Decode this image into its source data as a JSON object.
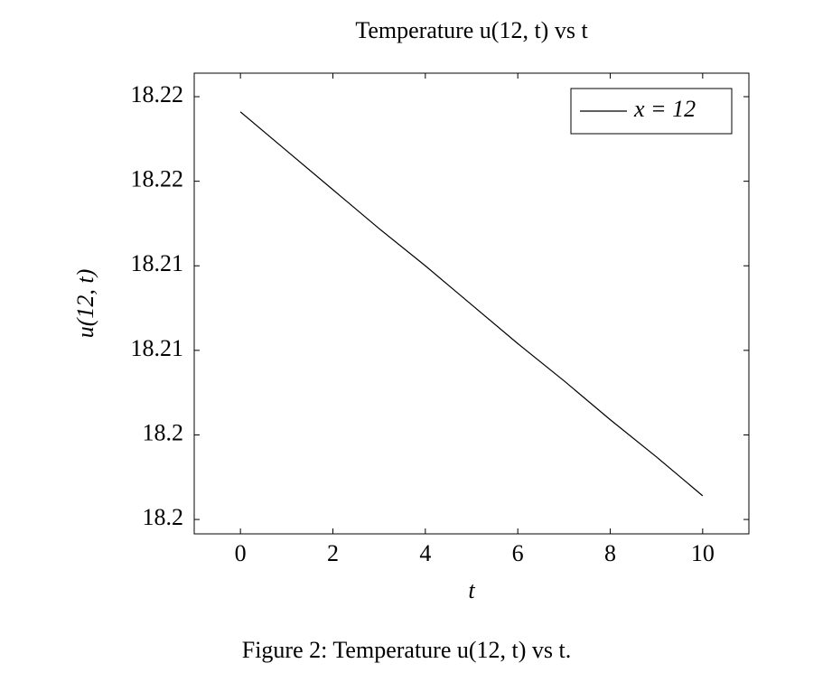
{
  "chart_data": {
    "type": "line",
    "title": "Temperature u(12, t) vs t",
    "caption": "Figure 2: Temperature u(12, t) vs t.",
    "xlabel": "t",
    "ylabel": "u(12, t)",
    "x": [
      0,
      1,
      2,
      3,
      4,
      5,
      6,
      7,
      8,
      9,
      10
    ],
    "series": [
      {
        "name": "x = 12",
        "color": "#000000",
        "values": [
          18.2191,
          18.2168,
          18.2145,
          18.2122,
          18.21,
          18.2077,
          18.2054,
          18.2032,
          18.2009,
          18.1987,
          18.1964
        ]
      }
    ],
    "xlim": [
      -1,
      11
    ],
    "xticks": [
      0,
      2,
      4,
      6,
      8,
      10
    ],
    "ylim": [
      18.19415,
      18.22139
    ],
    "yticks": [
      {
        "value": 18.195,
        "label": "18.2"
      },
      {
        "value": 18.2,
        "label": "18.2"
      },
      {
        "value": 18.205,
        "label": "18.21"
      },
      {
        "value": 18.21,
        "label": "18.21"
      },
      {
        "value": 18.215,
        "label": "18.22"
      },
      {
        "value": 18.22,
        "label": "18.22"
      }
    ],
    "legend": "top-right",
    "grid": false
  }
}
